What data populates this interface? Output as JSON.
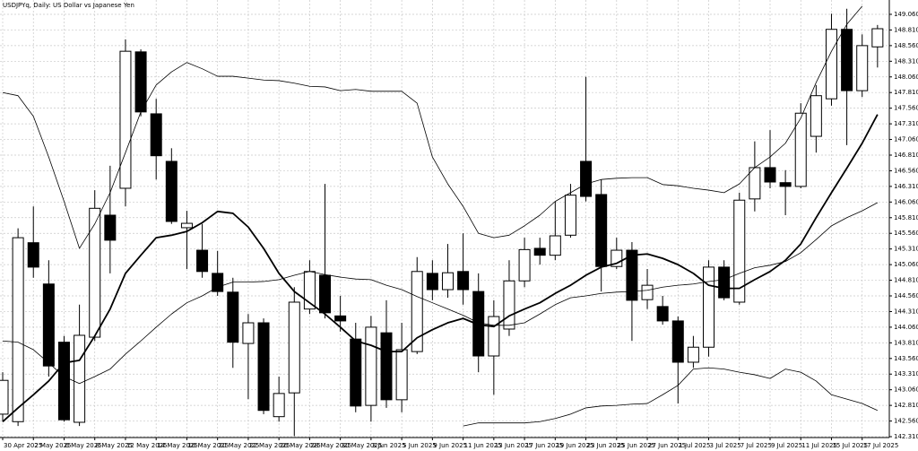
{
  "chart_data": {
    "type": "candlestick",
    "title": "USDJPYq, Daily:  US Dollar vs Japanese Yen",
    "x": [
      "30 Apr 2025",
      null,
      "2 May 2025",
      null,
      "6 May 2025",
      null,
      "8 May 2025",
      null,
      "12 May 2025",
      null,
      "14 May 2025",
      null,
      "16 May 2025",
      null,
      "20 May 2025",
      null,
      "22 May 2025",
      null,
      "26 May 2025",
      null,
      "28 May 2025",
      null,
      "30 May 2025",
      null,
      "3 Jun 2025",
      null,
      "5 Jun 2025",
      null,
      "9 Jun 2025",
      null,
      "11 Jun 2025",
      null,
      "13 Jun 2025",
      null,
      "17 Jun 2025",
      null,
      "19 Jun 2025",
      null,
      "23 Jun 2025",
      null,
      "25 Jun 2025",
      null,
      "27 Jun 2025",
      null,
      "1 Jul 2025",
      null,
      "3 Jul 2025",
      null,
      "7 Jul 2025",
      null,
      "9 Jul 2025",
      null,
      "11 Jul 2025",
      null,
      "15 Jul 2025",
      null,
      "17 Jul 2025",
      null
    ],
    "open": [
      142.67,
      142.55,
      145.41,
      144.75,
      143.82,
      142.54,
      143.9,
      145.85,
      146.28,
      148.46,
      147.47,
      146.71,
      145.65,
      145.29,
      144.92,
      144.62,
      143.8,
      144.13,
      142.63,
      143.01,
      144.35,
      144.89,
      144.24,
      143.87,
      142.81,
      143.97,
      142.9,
      143.67,
      144.92,
      144.66,
      144.95,
      144.63,
      143.6,
      144.03,
      144.8,
      145.32,
      145.21,
      145.53,
      146.71,
      146.18,
      145.03,
      145.29,
      144.5,
      144.39,
      144.16,
      143.5,
      143.74,
      145.02,
      144.46,
      146.11,
      146.61,
      146.37,
      146.31,
      147.11,
      147.71,
      148.82,
      147.84,
      148.54
    ],
    "high": [
      143.34,
      145.64,
      145.99,
      145.13,
      143.92,
      144.42,
      146.25,
      146.64,
      148.66,
      148.5,
      147.71,
      146.92,
      145.92,
      145.71,
      145.28,
      144.85,
      144.27,
      144.2,
      143.27,
      144.7,
      145.13,
      146.35,
      144.56,
      144.13,
      144.24,
      144.49,
      144.13,
      145.18,
      145.13,
      145.39,
      145.56,
      144.92,
      144.49,
      145.13,
      145.49,
      145.49,
      146.07,
      146.35,
      148.06,
      146.42,
      145.49,
      145.42,
      144.99,
      144.56,
      144.23,
      143.92,
      145.13,
      145.13,
      146.21,
      147.03,
      147.21,
      146.57,
      147.64,
      147.93,
      149.07,
      149.15,
      148.74,
      148.89
    ],
    "low": [
      142.55,
      142.48,
      144.85,
      143.27,
      142.55,
      142.48,
      143.84,
      144.92,
      145.99,
      147.43,
      146.42,
      145.71,
      144.99,
      144.85,
      144.56,
      143.41,
      142.91,
      142.67,
      142.55,
      142.32,
      144.27,
      144.2,
      143.99,
      142.7,
      142.55,
      142.77,
      142.7,
      143.63,
      144.49,
      144.53,
      144.42,
      143.34,
      142.98,
      143.92,
      144.7,
      145.06,
      145.13,
      145.49,
      146.07,
      144.63,
      144.99,
      143.84,
      144.35,
      144.1,
      142.84,
      143.41,
      143.59,
      144.49,
      144.42,
      145.91,
      146.28,
      145.85,
      146.28,
      146.85,
      147.6,
      146.97,
      147.74,
      148.21
    ],
    "close": [
      143.21,
      145.49,
      145.02,
      143.44,
      142.58,
      143.93,
      145.96,
      145.45,
      148.47,
      147.5,
      146.8,
      145.75,
      145.72,
      144.95,
      144.63,
      143.82,
      144.13,
      142.73,
      143.0,
      144.46,
      144.95,
      144.29,
      144.16,
      142.8,
      144.06,
      142.9,
      143.7,
      144.95,
      144.66,
      144.93,
      144.66,
      143.6,
      144.23,
      144.8,
      145.3,
      145.21,
      145.52,
      146.17,
      146.15,
      145.03,
      145.29,
      144.49,
      144.73,
      144.16,
      143.5,
      143.74,
      145.02,
      144.53,
      146.09,
      146.61,
      146.38,
      146.31,
      147.48,
      147.76,
      148.82,
      147.84,
      148.56,
      148.83
    ],
    "up_color": "#ffffff",
    "down_color": "#000000",
    "indicators": [
      {
        "color": "#000000",
        "width": 0.8,
        "values": [
          147.81,
          147.76,
          147.43,
          146.78,
          146.07,
          145.32,
          145.71,
          146.21,
          146.85,
          147.5,
          147.93,
          148.14,
          148.29,
          148.19,
          148.07,
          148.07,
          148.04,
          148.01,
          148.0,
          147.96,
          147.91,
          147.9,
          147.84,
          147.86,
          147.83,
          147.83,
          147.83,
          147.64,
          146.78,
          146.35,
          145.99,
          145.56,
          145.49,
          145.53,
          145.68,
          145.85,
          146.07,
          146.21,
          146.35,
          146.42,
          146.44,
          146.45,
          146.45,
          146.34,
          146.32,
          146.28,
          146.25,
          146.21,
          146.35,
          146.61,
          146.78,
          147.0,
          147.4,
          147.97,
          148.47,
          148.9,
          149.19,
          null
        ]
      },
      {
        "color": "#000000",
        "width": 0.8,
        "values": [
          143.84,
          143.82,
          143.7,
          143.49,
          143.27,
          143.16,
          143.27,
          143.39,
          143.63,
          143.84,
          144.06,
          144.27,
          144.45,
          144.56,
          144.7,
          144.78,
          144.78,
          144.79,
          144.82,
          144.89,
          144.95,
          144.9,
          144.86,
          144.83,
          144.82,
          144.73,
          144.66,
          144.55,
          144.45,
          144.35,
          144.25,
          144.13,
          144.09,
          144.09,
          144.13,
          144.27,
          144.42,
          144.53,
          144.56,
          144.6,
          144.62,
          144.63,
          144.65,
          144.7,
          144.73,
          144.75,
          144.79,
          144.82,
          144.92,
          145.01,
          145.05,
          145.11,
          145.25,
          145.46,
          145.68,
          145.81,
          145.92,
          146.05
        ]
      },
      {
        "color": "#000000",
        "width": 0.8,
        "values": [
          null,
          null,
          null,
          null,
          null,
          null,
          null,
          null,
          null,
          null,
          null,
          null,
          null,
          null,
          null,
          null,
          null,
          null,
          null,
          null,
          null,
          null,
          null,
          null,
          null,
          null,
          null,
          null,
          null,
          null,
          142.48,
          142.53,
          142.53,
          142.53,
          142.53,
          142.55,
          142.6,
          142.67,
          142.77,
          142.8,
          142.81,
          142.83,
          142.84,
          142.98,
          143.13,
          143.39,
          143.41,
          143.39,
          143.34,
          143.3,
          143.24,
          143.39,
          143.34,
          143.2,
          142.98,
          142.91,
          142.84,
          142.73
        ]
      },
      {
        "color": "#000000",
        "width": 1.8,
        "values": [
          142.55,
          142.77,
          142.98,
          143.2,
          143.49,
          143.53,
          143.92,
          144.35,
          144.92,
          145.21,
          145.49,
          145.53,
          145.59,
          145.73,
          145.91,
          145.88,
          145.66,
          145.32,
          144.92,
          144.63,
          144.45,
          144.27,
          144.06,
          143.84,
          143.77,
          143.67,
          143.67,
          143.89,
          144.02,
          144.13,
          144.2,
          144.1,
          144.07,
          144.24,
          144.35,
          144.45,
          144.6,
          144.73,
          144.89,
          145.02,
          145.08,
          145.21,
          145.23,
          145.16,
          145.06,
          144.92,
          144.73,
          144.68,
          144.68,
          144.82,
          144.95,
          145.13,
          145.39,
          145.81,
          146.21,
          146.6,
          147.0,
          147.46
        ]
      }
    ],
    "ylim": [
      142.296,
      149.289
    ],
    "yticks": [
      {
        "value": 149.06,
        "label": "149.060"
      },
      {
        "value": 148.81,
        "label": "148.810"
      },
      {
        "value": 148.56,
        "label": "148.560"
      },
      {
        "value": 148.31,
        "label": "148.310"
      },
      {
        "value": 148.06,
        "label": "148.060"
      },
      {
        "value": 147.81,
        "label": "147.810"
      },
      {
        "value": 147.56,
        "label": "147.560"
      },
      {
        "value": 147.31,
        "label": "147.310"
      },
      {
        "value": 147.06,
        "label": "147.060"
      },
      {
        "value": 146.81,
        "label": "146.810"
      },
      {
        "value": 146.56,
        "label": "146.560"
      },
      {
        "value": 146.31,
        "label": "146.310"
      },
      {
        "value": 146.06,
        "label": "146.060"
      },
      {
        "value": 145.81,
        "label": "145.810"
      },
      {
        "value": 145.56,
        "label": "145.560"
      },
      {
        "value": 145.31,
        "label": "145.310"
      },
      {
        "value": 145.06,
        "label": "145.060"
      },
      {
        "value": 144.81,
        "label": "144.810"
      },
      {
        "value": 144.56,
        "label": "144.560"
      },
      {
        "value": 144.31,
        "label": "144.310"
      },
      {
        "value": 144.06,
        "label": "144.060"
      },
      {
        "value": 143.81,
        "label": "143.810"
      },
      {
        "value": 143.56,
        "label": "143.560"
      },
      {
        "value": 143.31,
        "label": "143.310"
      },
      {
        "value": 143.06,
        "label": "143.060"
      },
      {
        "value": 142.81,
        "label": "142.810"
      },
      {
        "value": 142.56,
        "label": "142.560"
      },
      {
        "value": 142.31,
        "label": "142.310"
      }
    ],
    "grid": true
  }
}
